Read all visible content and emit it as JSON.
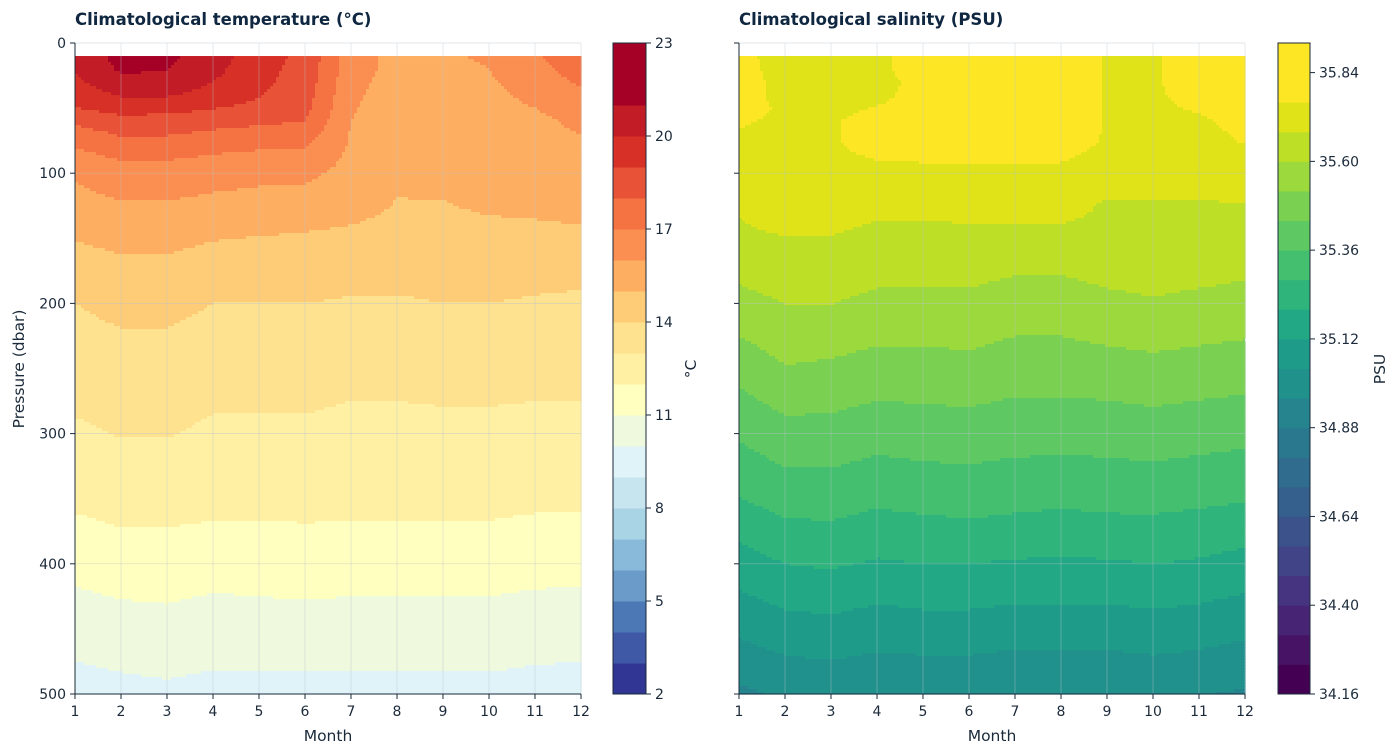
{
  "chart_data": [
    {
      "type": "heatmap",
      "title": "Climatological temperature (°C)",
      "xlabel": "Month",
      "ylabel": "Pressure (dbar)",
      "xlim": [
        1,
        12
      ],
      "ylim": [
        500,
        0
      ],
      "y_inverted": true,
      "x_ticks": [
        "1",
        "2",
        "3",
        "4",
        "5",
        "6",
        "7",
        "8",
        "9",
        "10",
        "11",
        "12"
      ],
      "y_ticks": [
        "0",
        "100",
        "200",
        "300",
        "400",
        "500"
      ],
      "grid": true,
      "colormap": "RdYlBu_r",
      "colorbar": {
        "label": "°C",
        "min": 2,
        "max": 23,
        "ticks": [
          "2",
          "5",
          "8",
          "11",
          "14",
          "17",
          "20",
          "23"
        ],
        "levels": 21,
        "colors": [
          "#313695",
          "#3f59a6",
          "#4d78b6",
          "#6a9bc9",
          "#89bada",
          "#a9d4e6",
          "#c6e5ef",
          "#e0f3f8",
          "#eff9dd",
          "#ffffbf",
          "#fff0a4",
          "#fee28f",
          "#fecc77",
          "#fdae61",
          "#fa8f51",
          "#f57243",
          "#e85236",
          "#d73027",
          "#c21c27",
          "#a50026",
          "#a50026"
        ]
      },
      "z_units": "°C",
      "pressure_levels": [
        10,
        20,
        30,
        40,
        50,
        60,
        75,
        100,
        125,
        150,
        200,
        250,
        300,
        350,
        400,
        450,
        500
      ],
      "months": [
        1,
        2,
        3,
        4,
        5,
        6,
        7,
        8,
        9,
        10,
        11,
        12
      ],
      "z": [
        [
          21.2,
          22.3,
          22.2,
          21.4,
          20.3,
          19.6,
          17.2,
          16.4,
          16.6,
          16.8,
          17.6,
          18.6
        ],
        [
          21.0,
          22.1,
          22.0,
          21.2,
          20.2,
          19.5,
          17.1,
          16.4,
          16.5,
          16.7,
          17.4,
          18.3
        ],
        [
          20.7,
          21.7,
          21.6,
          20.9,
          20.1,
          19.4,
          17.0,
          16.3,
          16.4,
          16.6,
          17.1,
          17.9
        ],
        [
          20.2,
          21.0,
          21.0,
          20.5,
          19.9,
          19.3,
          16.9,
          16.2,
          16.3,
          16.5,
          16.9,
          17.5
        ],
        [
          19.8,
          20.3,
          20.2,
          19.9,
          19.6,
          19.1,
          16.8,
          16.1,
          16.2,
          16.4,
          16.7,
          17.2
        ],
        [
          19.0,
          19.5,
          19.4,
          19.2,
          19.0,
          18.8,
          16.7,
          16.0,
          16.1,
          16.3,
          16.5,
          16.9
        ],
        [
          18.0,
          18.6,
          18.6,
          18.3,
          18.1,
          18.0,
          16.6,
          15.9,
          16.0,
          16.2,
          16.4,
          16.6
        ],
        [
          16.8,
          17.2,
          17.2,
          17.0,
          16.9,
          16.9,
          16.4,
          15.8,
          15.9,
          16.1,
          16.2,
          16.4
        ],
        [
          16.4,
          16.6,
          16.6,
          16.5,
          16.4,
          16.3,
          16.0,
          15.6,
          15.6,
          15.8,
          15.9,
          16.0
        ],
        [
          15.7,
          15.9,
          15.9,
          15.7,
          15.6,
          15.5,
          15.4,
          15.3,
          15.2,
          15.3,
          15.3,
          15.4
        ],
        [
          14.6,
          14.9,
          14.9,
          14.6,
          14.6,
          14.6,
          14.5,
          14.5,
          14.6,
          14.6,
          14.5,
          14.4
        ],
        [
          14.0,
          14.1,
          14.1,
          13.9,
          13.9,
          13.9,
          13.8,
          13.8,
          13.9,
          13.9,
          13.8,
          13.8
        ],
        [
          13.4,
          13.6,
          13.6,
          13.4,
          13.4,
          13.4,
          13.3,
          13.3,
          13.3,
          13.3,
          13.3,
          13.3
        ],
        [
          12.7,
          12.9,
          12.9,
          12.8,
          12.8,
          12.8,
          12.8,
          12.8,
          12.8,
          12.8,
          12.7,
          12.7
        ],
        [
          11.8,
          12.0,
          12.0,
          11.9,
          11.9,
          12.0,
          11.9,
          11.9,
          11.9,
          11.9,
          11.8,
          11.8
        ],
        [
          10.8,
          11.0,
          11.1,
          10.9,
          11.0,
          11.0,
          11.0,
          11.0,
          11.0,
          11.0,
          10.9,
          10.8
        ],
        [
          10.0,
          10.1,
          10.2,
          10.1,
          10.1,
          10.1,
          10.1,
          10.1,
          10.1,
          10.1,
          10.0,
          10.0
        ]
      ]
    },
    {
      "type": "heatmap",
      "title": "Climatological salinity (PSU)",
      "xlabel": "Month",
      "ylabel": "",
      "xlim": [
        1,
        12
      ],
      "ylim": [
        500,
        0
      ],
      "y_inverted": true,
      "x_ticks": [
        "1",
        "2",
        "3",
        "4",
        "5",
        "6",
        "7",
        "8",
        "9",
        "10",
        "11",
        "12"
      ],
      "shares_y_axis_with": "Climatological temperature (°C)",
      "grid": true,
      "colormap": "viridis",
      "colorbar": {
        "label": "PSU",
        "min": 34.16,
        "max": 35.92,
        "ticks": [
          "34.16",
          "34.40",
          "34.64",
          "34.88",
          "35.12",
          "35.36",
          "35.60",
          "35.84"
        ],
        "levels": 22,
        "colors": [
          "#440154",
          "#471365",
          "#482475",
          "#463480",
          "#414487",
          "#3b528b",
          "#355f8d",
          "#2f6c8e",
          "#2a788e",
          "#25848e",
          "#21918c",
          "#1e9c89",
          "#22a884",
          "#2fb47c",
          "#44bf70",
          "#5ec962",
          "#7ad151",
          "#9bd93c",
          "#bddf26",
          "#dfe318",
          "#fde725",
          "#fde725"
        ]
      },
      "z_units": "PSU",
      "pressure_levels": [
        10,
        20,
        30,
        40,
        50,
        60,
        75,
        100,
        125,
        150,
        200,
        250,
        300,
        350,
        400,
        450,
        500
      ],
      "months": [
        1,
        2,
        3,
        4,
        5,
        6,
        7,
        8,
        9,
        10,
        11,
        12
      ],
      "z": [
        [
          35.86,
          35.8,
          35.78,
          35.82,
          35.87,
          35.88,
          35.88,
          35.88,
          35.83,
          35.83,
          35.86,
          35.88
        ],
        [
          35.87,
          35.8,
          35.77,
          35.82,
          35.87,
          35.88,
          35.88,
          35.88,
          35.83,
          35.83,
          35.86,
          35.88
        ],
        [
          35.87,
          35.81,
          35.77,
          35.81,
          35.86,
          35.88,
          35.88,
          35.88,
          35.83,
          35.83,
          35.86,
          35.88
        ],
        [
          35.86,
          35.82,
          35.81,
          35.82,
          35.86,
          35.88,
          35.88,
          35.88,
          35.83,
          35.83,
          35.85,
          35.87
        ],
        [
          35.85,
          35.83,
          35.82,
          35.84,
          35.86,
          35.88,
          35.88,
          35.88,
          35.83,
          35.83,
          35.84,
          35.86
        ],
        [
          35.84,
          35.83,
          35.83,
          35.86,
          35.87,
          35.88,
          35.88,
          35.88,
          35.83,
          35.83,
          35.83,
          35.85
        ],
        [
          35.83,
          35.82,
          35.83,
          35.86,
          35.87,
          35.88,
          35.87,
          35.87,
          35.83,
          35.82,
          35.82,
          35.84
        ],
        [
          35.82,
          35.81,
          35.82,
          35.82,
          35.82,
          35.82,
          35.82,
          35.82,
          35.8,
          35.8,
          35.8,
          35.81
        ],
        [
          35.76,
          35.79,
          35.79,
          35.77,
          35.77,
          35.78,
          35.79,
          35.79,
          35.74,
          35.74,
          35.74,
          35.75
        ],
        [
          35.74,
          35.75,
          35.75,
          35.73,
          35.73,
          35.73,
          35.72,
          35.72,
          35.73,
          35.74,
          35.73,
          35.72
        ],
        [
          35.64,
          35.67,
          35.67,
          35.65,
          35.65,
          35.65,
          35.63,
          35.63,
          35.65,
          35.66,
          35.65,
          35.64
        ],
        [
          35.53,
          35.58,
          35.57,
          35.55,
          35.55,
          35.56,
          35.54,
          35.54,
          35.55,
          35.56,
          35.55,
          35.54
        ],
        [
          35.43,
          35.47,
          35.47,
          35.45,
          35.46,
          35.46,
          35.45,
          35.45,
          35.45,
          35.46,
          35.45,
          35.44
        ],
        [
          35.33,
          35.37,
          35.37,
          35.35,
          35.36,
          35.37,
          35.36,
          35.35,
          35.36,
          35.36,
          35.35,
          35.34
        ],
        [
          35.21,
          35.25,
          35.26,
          35.24,
          35.25,
          35.25,
          35.24,
          35.24,
          35.24,
          35.25,
          35.24,
          35.22
        ],
        [
          35.1,
          35.13,
          35.14,
          35.12,
          35.13,
          35.13,
          35.12,
          35.12,
          35.12,
          35.13,
          35.12,
          35.1
        ],
        [
          34.98,
          35.01,
          35.02,
          35.01,
          35.01,
          35.01,
          35.0,
          35.0,
          35.0,
          35.01,
          35.0,
          34.99
        ]
      ]
    }
  ]
}
